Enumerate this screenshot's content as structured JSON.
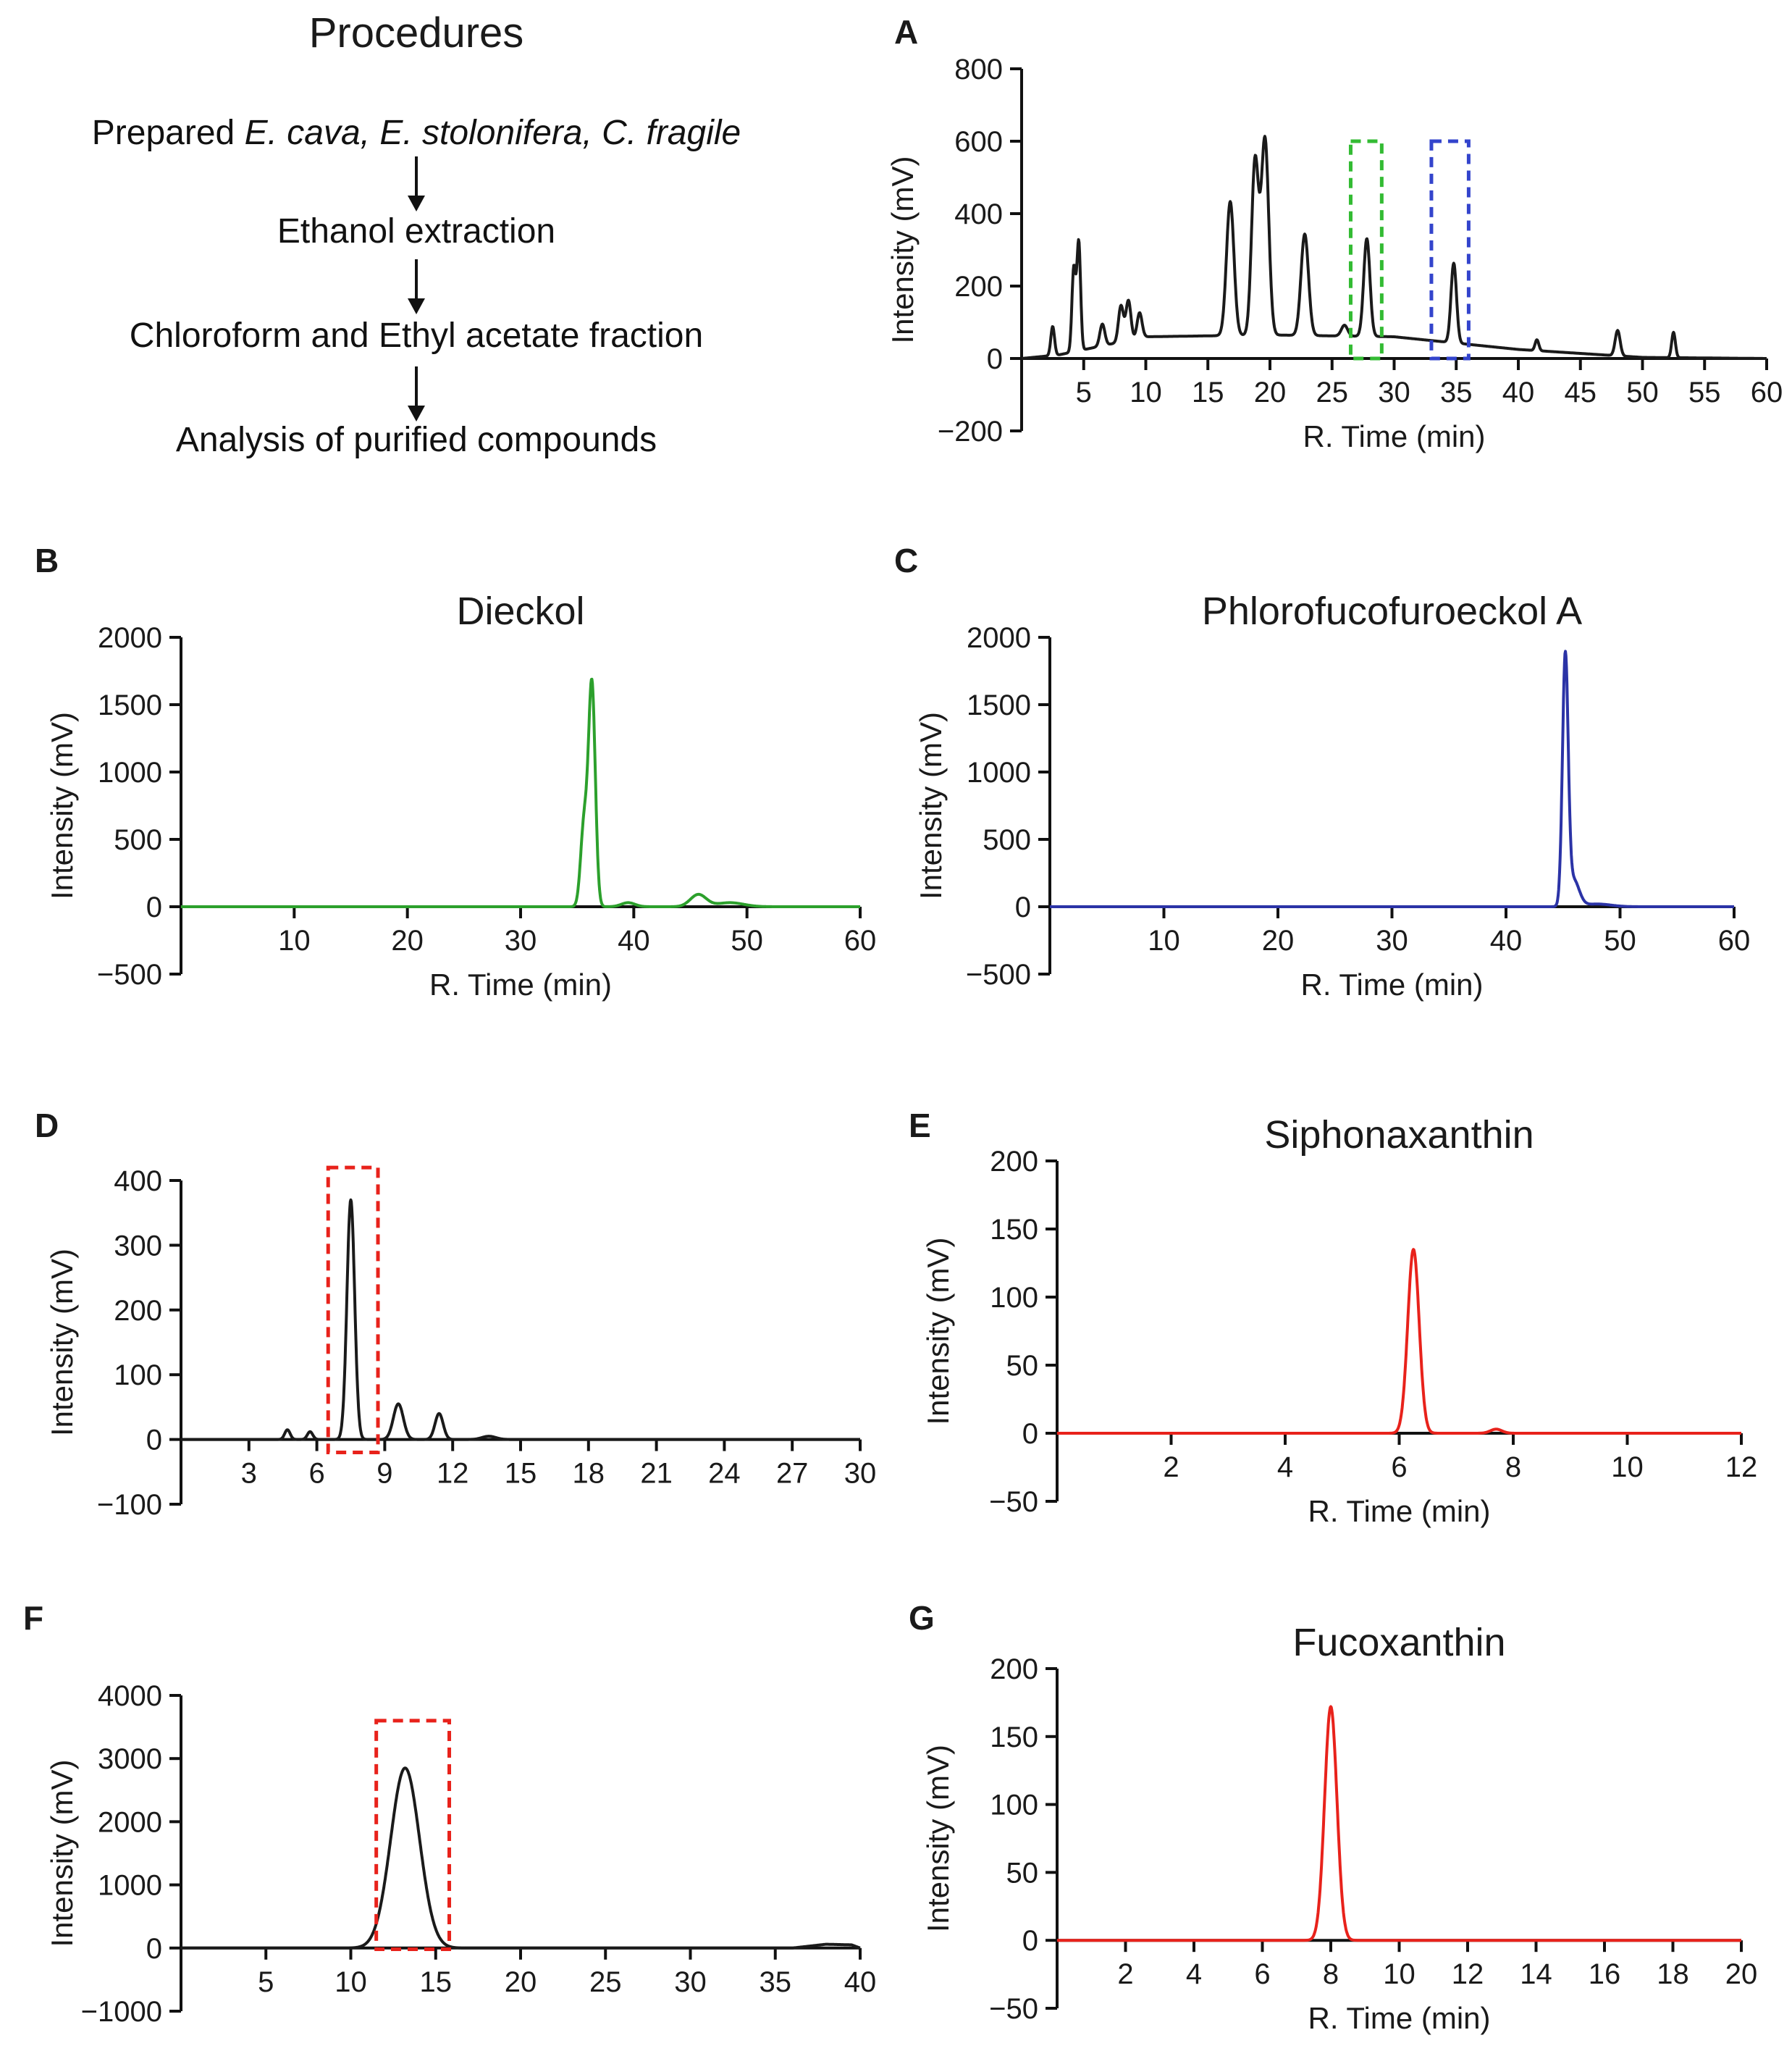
{
  "procedures": {
    "title": "Procedures",
    "steps": [
      {
        "prefix": "Prepared ",
        "italic": "E. cava, E. stolonifera, C. fragile"
      },
      {
        "prefix": "Ethanol extraction",
        "italic": ""
      },
      {
        "prefix": "Chloroform and Ethyl acetate fraction",
        "italic": ""
      },
      {
        "prefix": "Analysis of purified compounds",
        "italic": ""
      }
    ]
  },
  "colors": {
    "black": "#1a1a1a",
    "green": "#2ca02c",
    "blue": "#2b33a6",
    "red": "#e8221b",
    "box_green": "#33bb33",
    "box_blue": "#3344cc",
    "box_red": "#e8221b"
  },
  "chart_data": [
    {
      "panel": "A",
      "type": "line",
      "title": "",
      "xlabel": "R. Time (min)",
      "ylabel": "Intensity (mV)",
      "xlim": [
        0,
        60
      ],
      "ylim": [
        -200,
        800
      ],
      "xticks": [
        5,
        10,
        15,
        20,
        25,
        30,
        35,
        40,
        45,
        50,
        55,
        60
      ],
      "yticks": [
        -200,
        0,
        200,
        400,
        600,
        800
      ],
      "color": "black",
      "baseline": [
        [
          0,
          0
        ],
        [
          3,
          10
        ],
        [
          10,
          60
        ],
        [
          20,
          65
        ],
        [
          30,
          60
        ],
        [
          40,
          25
        ],
        [
          50,
          3
        ],
        [
          60,
          0
        ]
      ],
      "peaks": [
        [
          2.5,
          80,
          0.15
        ],
        [
          4.2,
          230,
          0.15
        ],
        [
          4.6,
          300,
          0.15
        ],
        [
          6.5,
          60,
          0.2
        ],
        [
          8.0,
          100,
          0.2
        ],
        [
          8.6,
          110,
          0.2
        ],
        [
          9.5,
          70,
          0.2
        ],
        [
          16.8,
          370,
          0.3
        ],
        [
          18.8,
          480,
          0.28
        ],
        [
          19.6,
          540,
          0.3
        ],
        [
          22.8,
          280,
          0.3
        ],
        [
          26,
          30,
          0.25
        ],
        [
          27.8,
          270,
          0.25
        ],
        [
          34.8,
          220,
          0.22
        ],
        [
          41.5,
          30,
          0.15
        ],
        [
          48,
          70,
          0.2
        ],
        [
          52.5,
          70,
          0.15
        ]
      ],
      "boxes": [
        {
          "x": [
            26.5,
            29
          ],
          "y": [
            0,
            600
          ],
          "color": "box_green"
        },
        {
          "x": [
            33,
            36
          ],
          "y": [
            0,
            600
          ],
          "color": "box_blue"
        }
      ]
    },
    {
      "panel": "B",
      "type": "line",
      "title": "Dieckol",
      "xlabel": "R. Time (min)",
      "ylabel": "Intensity (mV)",
      "xlim": [
        0,
        60
      ],
      "ylim": [
        -500,
        2000
      ],
      "xticks": [
        10,
        20,
        30,
        40,
        50,
        60
      ],
      "yticks": [
        -500,
        0,
        500,
        1000,
        1500,
        2000
      ],
      "color": "green",
      "baseline": [
        [
          0,
          0
        ],
        [
          60,
          0
        ]
      ],
      "peaks": [
        [
          35.6,
          600,
          0.3
        ],
        [
          36.3,
          1650,
          0.3
        ],
        [
          39.5,
          30,
          0.6
        ],
        [
          45.7,
          90,
          0.7
        ],
        [
          48.5,
          30,
          1.2
        ]
      ],
      "boxes": []
    },
    {
      "panel": "C",
      "type": "line",
      "title": "Phlorofucofuroeckol A",
      "xlabel": "R. Time (min)",
      "ylabel": "Intensity (mV)",
      "xlim": [
        0,
        60
      ],
      "ylim": [
        -500,
        2000
      ],
      "xticks": [
        10,
        20,
        30,
        40,
        50,
        60
      ],
      "yticks": [
        -500,
        0,
        500,
        1000,
        1500,
        2000
      ],
      "color": "blue",
      "baseline": [
        [
          0,
          0
        ],
        [
          60,
          0
        ]
      ],
      "peaks": [
        [
          45.2,
          1820,
          0.25
        ],
        [
          45.9,
          200,
          0.5
        ],
        [
          48,
          20,
          1.2
        ]
      ],
      "boxes": []
    },
    {
      "panel": "D",
      "type": "line",
      "title": "",
      "xlabel": "",
      "ylabel": "Intensity (mV)",
      "xlim": [
        0,
        30
      ],
      "ylim": [
        -100,
        400
      ],
      "xticks": [
        3,
        6,
        9,
        12,
        15,
        18,
        21,
        24,
        27,
        30
      ],
      "yticks": [
        -100,
        0,
        100,
        200,
        300,
        400
      ],
      "color": "black",
      "baseline": [
        [
          0,
          0
        ],
        [
          30,
          0
        ]
      ],
      "peaks": [
        [
          4.7,
          15,
          0.12
        ],
        [
          5.7,
          12,
          0.12
        ],
        [
          7.5,
          370,
          0.17
        ],
        [
          9.6,
          55,
          0.22
        ],
        [
          11.4,
          40,
          0.18
        ],
        [
          13.6,
          5,
          0.3
        ]
      ],
      "boxes": [
        {
          "x": [
            6.5,
            8.7
          ],
          "y": [
            -20,
            420
          ],
          "color": "box_red"
        }
      ]
    },
    {
      "panel": "E",
      "type": "line",
      "title": "Siphonaxanthin",
      "xlabel": "R. Time (min)",
      "ylabel": "Intensity (mV)",
      "xlim": [
        0,
        12
      ],
      "ylim": [
        -50,
        200
      ],
      "xticks": [
        2,
        4,
        6,
        8,
        10,
        12
      ],
      "yticks": [
        -50,
        0,
        50,
        100,
        150,
        200
      ],
      "color": "red",
      "baseline": [
        [
          0,
          0
        ],
        [
          12,
          0
        ]
      ],
      "peaks": [
        [
          6.25,
          135,
          0.1
        ],
        [
          7.7,
          3,
          0.1
        ]
      ],
      "boxes": []
    },
    {
      "panel": "F",
      "type": "line",
      "title": "",
      "xlabel": "",
      "ylabel": "Intensity (mV)",
      "xlim": [
        0,
        40
      ],
      "ylim": [
        -1000,
        4000
      ],
      "xticks": [
        5,
        10,
        15,
        20,
        25,
        30,
        35,
        40
      ],
      "yticks": [
        -1000,
        0,
        1000,
        2000,
        3000,
        4000
      ],
      "color": "black",
      "baseline": [
        [
          0,
          0
        ],
        [
          36,
          0
        ],
        [
          38,
          60
        ],
        [
          39.5,
          50
        ],
        [
          40,
          0
        ]
      ],
      "peaks": [
        [
          13.2,
          2850,
          0.85
        ]
      ],
      "boxes": [
        {
          "x": [
            11.5,
            15.8
          ],
          "y": [
            -20,
            3600
          ],
          "color": "box_red"
        }
      ]
    },
    {
      "panel": "G",
      "type": "line",
      "title": "Fucoxanthin",
      "xlabel": "R. Time (min)",
      "ylabel": "Intensity (mV)",
      "xlim": [
        0,
        20
      ],
      "ylim": [
        -50,
        200
      ],
      "xticks": [
        2,
        4,
        6,
        8,
        10,
        12,
        14,
        16,
        18,
        20
      ],
      "yticks": [
        -50,
        0,
        50,
        100,
        150,
        200
      ],
      "color": "red",
      "baseline": [
        [
          0,
          0
        ],
        [
          20,
          0
        ]
      ],
      "peaks": [
        [
          8.0,
          172,
          0.18
        ]
      ],
      "boxes": []
    }
  ]
}
